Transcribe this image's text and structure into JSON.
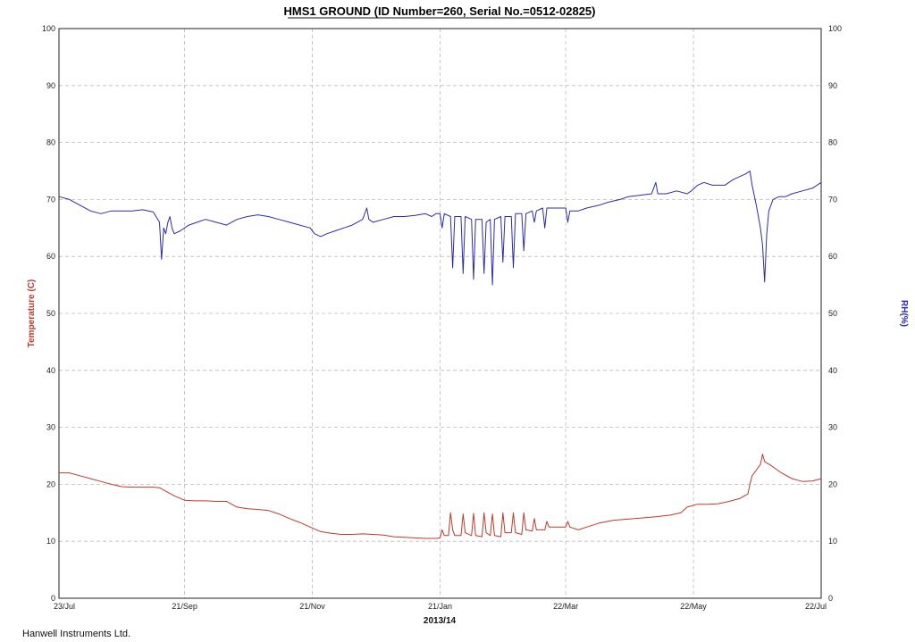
{
  "footer": "Hanwell Instruments Ltd.",
  "chart_data": {
    "type": "line",
    "title": "HMS1 GROUND (ID Number=260, Serial No.=0512-02825)",
    "xlabel": "2013/14",
    "ylabel_left": "Temperature (C)",
    "ylabel_right": "RH(%)",
    "ylim": [
      0,
      100
    ],
    "yticks": [
      0,
      10,
      20,
      30,
      40,
      50,
      60,
      70,
      80,
      90,
      100
    ],
    "xlim": [
      0,
      364
    ],
    "xticks": [
      {
        "pos": 0,
        "label": "23/Jul"
      },
      {
        "pos": 60,
        "label": "21/Sep"
      },
      {
        "pos": 121,
        "label": "21/Nov"
      },
      {
        "pos": 182,
        "label": "21/Jan"
      },
      {
        "pos": 242,
        "label": "22/Mar"
      },
      {
        "pos": 303,
        "label": "22/May"
      },
      {
        "pos": 364,
        "label": "22/Jul"
      }
    ],
    "grid": true,
    "colors": {
      "temperature": "#c0392b",
      "rh": "#2b2bb0"
    },
    "series": [
      {
        "name": "RH(%)",
        "axis": "right",
        "color": "#2b2bb0",
        "points": [
          [
            0,
            70.5
          ],
          [
            5,
            70
          ],
          [
            10,
            69
          ],
          [
            15,
            68
          ],
          [
            20,
            67.5
          ],
          [
            25,
            68
          ],
          [
            30,
            68
          ],
          [
            35,
            68
          ],
          [
            40,
            68.2
          ],
          [
            45,
            67.8
          ],
          [
            48,
            66
          ],
          [
            49,
            59.5
          ],
          [
            50,
            65
          ],
          [
            51,
            64
          ],
          [
            52,
            66
          ],
          [
            53,
            67
          ],
          [
            54,
            65
          ],
          [
            55,
            64
          ],
          [
            58,
            64.5
          ],
          [
            62,
            65.5
          ],
          [
            66,
            66
          ],
          [
            70,
            66.5
          ],
          [
            75,
            66
          ],
          [
            80,
            65.5
          ],
          [
            85,
            66.5
          ],
          [
            90,
            67
          ],
          [
            95,
            67.3
          ],
          [
            100,
            67
          ],
          [
            105,
            66.5
          ],
          [
            110,
            66
          ],
          [
            115,
            65.5
          ],
          [
            120,
            65
          ],
          [
            122,
            64
          ],
          [
            125,
            63.5
          ],
          [
            128,
            64
          ],
          [
            132,
            64.5
          ],
          [
            136,
            65
          ],
          [
            140,
            65.5
          ],
          [
            145,
            66.5
          ],
          [
            147,
            68.5
          ],
          [
            148,
            66.5
          ],
          [
            150,
            66
          ],
          [
            155,
            66.5
          ],
          [
            160,
            67
          ],
          [
            165,
            67
          ],
          [
            170,
            67.2
          ],
          [
            175,
            67.5
          ],
          [
            178,
            67
          ],
          [
            180,
            67.5
          ],
          [
            182,
            67.5
          ],
          [
            183,
            65
          ],
          [
            184,
            67.5
          ],
          [
            187,
            67
          ],
          [
            188,
            58
          ],
          [
            189,
            67
          ],
          [
            192,
            67
          ],
          [
            193,
            57
          ],
          [
            194,
            67
          ],
          [
            197,
            66.5
          ],
          [
            198,
            56
          ],
          [
            199,
            66.5
          ],
          [
            202,
            66.5
          ],
          [
            203,
            57
          ],
          [
            204,
            66
          ],
          [
            206,
            66.5
          ],
          [
            207,
            55
          ],
          [
            208,
            66.5
          ],
          [
            211,
            67
          ],
          [
            212,
            59
          ],
          [
            213,
            67
          ],
          [
            216,
            67
          ],
          [
            217,
            58
          ],
          [
            218,
            67.5
          ],
          [
            221,
            67.5
          ],
          [
            222,
            61
          ],
          [
            223,
            67.5
          ],
          [
            226,
            68
          ],
          [
            227,
            66
          ],
          [
            228,
            68
          ],
          [
            231,
            68.5
          ],
          [
            232,
            65
          ],
          [
            233,
            68.5
          ],
          [
            237,
            68.5
          ],
          [
            242,
            68.5
          ],
          [
            243,
            66
          ],
          [
            244,
            68
          ],
          [
            248,
            68
          ],
          [
            252,
            68.5
          ],
          [
            258,
            69
          ],
          [
            262,
            69.5
          ],
          [
            268,
            70
          ],
          [
            272,
            70.5
          ],
          [
            283,
            71
          ],
          [
            285,
            73
          ],
          [
            286,
            71
          ],
          [
            290,
            71
          ],
          [
            295,
            71.5
          ],
          [
            300,
            71
          ],
          [
            302,
            71.5
          ],
          [
            305,
            72.5
          ],
          [
            308,
            73
          ],
          [
            312,
            72.5
          ],
          [
            318,
            72.5
          ],
          [
            322,
            73.5
          ],
          [
            328,
            74.5
          ],
          [
            330,
            75
          ],
          [
            331,
            72.5
          ],
          [
            333,
            69
          ],
          [
            334,
            67
          ],
          [
            335,
            65
          ],
          [
            336,
            62
          ],
          [
            337,
            55.5
          ],
          [
            338,
            64
          ],
          [
            339,
            68
          ],
          [
            341,
            70
          ],
          [
            344,
            70.5
          ],
          [
            347,
            70.5
          ],
          [
            350,
            71
          ],
          [
            355,
            71.5
          ],
          [
            360,
            72
          ],
          [
            364,
            73
          ]
        ]
      },
      {
        "name": "Temperature (C)",
        "axis": "left",
        "color": "#c0392b",
        "points": [
          [
            0,
            22
          ],
          [
            5,
            22
          ],
          [
            10,
            21.5
          ],
          [
            15,
            21
          ],
          [
            20,
            20.5
          ],
          [
            25,
            20
          ],
          [
            30,
            19.6
          ],
          [
            35,
            19.5
          ],
          [
            40,
            19.5
          ],
          [
            45,
            19.5
          ],
          [
            48,
            19.4
          ],
          [
            50,
            19
          ],
          [
            55,
            18
          ],
          [
            60,
            17.2
          ],
          [
            65,
            17.1
          ],
          [
            70,
            17.1
          ],
          [
            75,
            17
          ],
          [
            80,
            17
          ],
          [
            85,
            16
          ],
          [
            90,
            15.7
          ],
          [
            95,
            15.6
          ],
          [
            100,
            15.4
          ],
          [
            105,
            14.8
          ],
          [
            110,
            14
          ],
          [
            115,
            13.3
          ],
          [
            120,
            12.5
          ],
          [
            125,
            11.7
          ],
          [
            130,
            11.4
          ],
          [
            135,
            11.2
          ],
          [
            140,
            11.2
          ],
          [
            145,
            11.3
          ],
          [
            150,
            11.2
          ],
          [
            155,
            11.1
          ],
          [
            160,
            10.8
          ],
          [
            165,
            10.7
          ],
          [
            170,
            10.6
          ],
          [
            175,
            10.5
          ],
          [
            180,
            10.5
          ],
          [
            182,
            10.6
          ],
          [
            183,
            12
          ],
          [
            184,
            11
          ],
          [
            186,
            11
          ],
          [
            187,
            15
          ],
          [
            188,
            12
          ],
          [
            189,
            11
          ],
          [
            192,
            11
          ],
          [
            193,
            14.8
          ],
          [
            194,
            11.5
          ],
          [
            197,
            11
          ],
          [
            198,
            14.9
          ],
          [
            199,
            11
          ],
          [
            202,
            10.8
          ],
          [
            203,
            15
          ],
          [
            204,
            11.5
          ],
          [
            206,
            11
          ],
          [
            207,
            14.8
          ],
          [
            208,
            11
          ],
          [
            211,
            10.8
          ],
          [
            212,
            15
          ],
          [
            213,
            11.5
          ],
          [
            216,
            11.5
          ],
          [
            217,
            15
          ],
          [
            218,
            11.5
          ],
          [
            221,
            11.2
          ],
          [
            222,
            15
          ],
          [
            223,
            12
          ],
          [
            226,
            11.8
          ],
          [
            227,
            14
          ],
          [
            228,
            12
          ],
          [
            232,
            12
          ],
          [
            233,
            13.5
          ],
          [
            234,
            12.5
          ],
          [
            237,
            12.5
          ],
          [
            242,
            12.5
          ],
          [
            243,
            13.5
          ],
          [
            244,
            12.5
          ],
          [
            248,
            12
          ],
          [
            252,
            12.5
          ],
          [
            258,
            13.2
          ],
          [
            265,
            13.7
          ],
          [
            275,
            14
          ],
          [
            285,
            14.3
          ],
          [
            292,
            14.6
          ],
          [
            297,
            15
          ],
          [
            300,
            16
          ],
          [
            305,
            16.5
          ],
          [
            310,
            16.5
          ],
          [
            315,
            16.6
          ],
          [
            320,
            17
          ],
          [
            325,
            17.5
          ],
          [
            329,
            18.3
          ],
          [
            330,
            20
          ],
          [
            331,
            21.5
          ],
          [
            333,
            22.5
          ],
          [
            335,
            23.5
          ],
          [
            336,
            25.3
          ],
          [
            337,
            24
          ],
          [
            340,
            23.3
          ],
          [
            345,
            22
          ],
          [
            350,
            21
          ],
          [
            355,
            20.5
          ],
          [
            360,
            20.6
          ],
          [
            364,
            21
          ]
        ]
      }
    ]
  }
}
